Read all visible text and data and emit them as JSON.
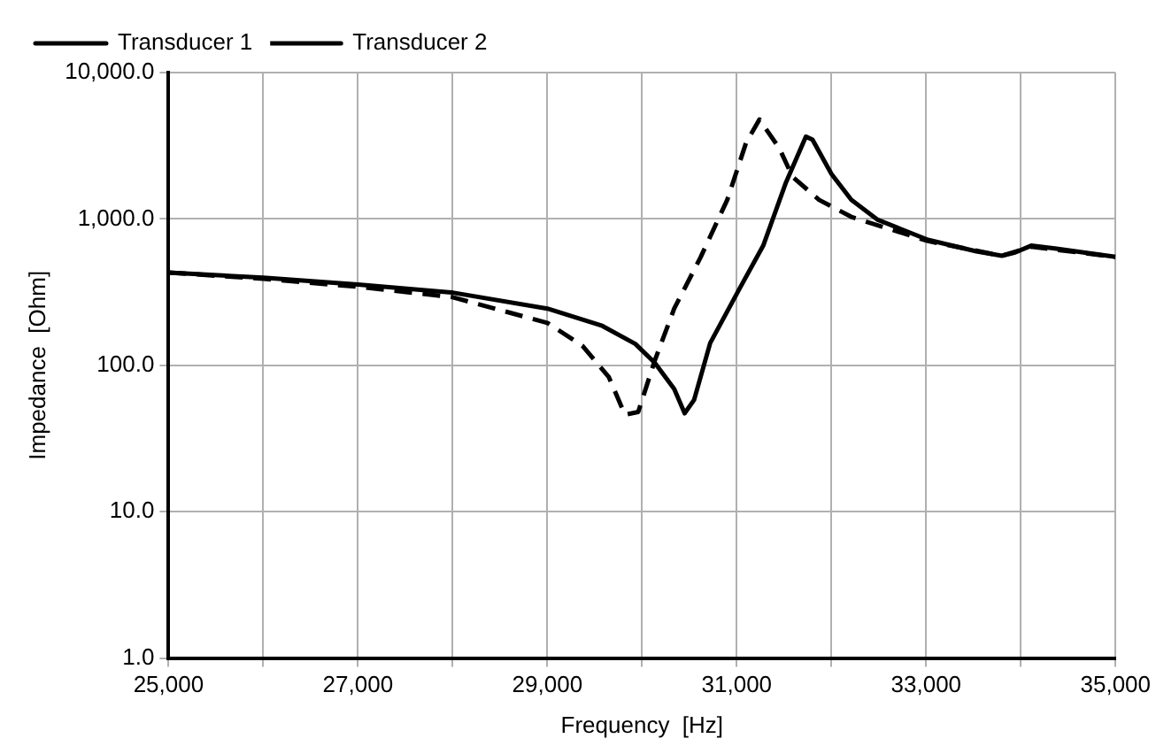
{
  "chart_data": {
    "type": "line",
    "xlabel": "Frequency  [Hz]",
    "ylabel": "Impedance  [Ohm]",
    "xlim": [
      25000,
      35000
    ],
    "xticks": [
      {
        "value": 25000,
        "label": "25,000"
      },
      {
        "value": 26000,
        "label": null
      },
      {
        "value": 27000,
        "label": "27,000"
      },
      {
        "value": 28000,
        "label": null
      },
      {
        "value": 29000,
        "label": "29,000"
      },
      {
        "value": 30000,
        "label": null
      },
      {
        "value": 31000,
        "label": "31,000"
      },
      {
        "value": 32000,
        "label": null
      },
      {
        "value": 33000,
        "label": "33,000"
      },
      {
        "value": 34000,
        "label": null
      },
      {
        "value": 35000,
        "label": "35,000"
      }
    ],
    "ylim": [
      1,
      10000
    ],
    "yticks": [
      {
        "value": 1,
        "label": "1.0"
      },
      {
        "value": 10,
        "label": "10.0"
      },
      {
        "value": 100,
        "label": "100.0"
      },
      {
        "value": 1000,
        "label": "1,000.0"
      },
      {
        "value": 10000,
        "label": "10,000.0"
      }
    ],
    "log": "y",
    "grid": true,
    "legend": "top left",
    "marker": "none",
    "series": [
      {
        "name": "Transducer 1",
        "color": "#000000",
        "line_style": "solid",
        "x": [
          25000,
          26000,
          27000,
          28000,
          29000,
          29580,
          29930,
          30135,
          30340,
          30450,
          30550,
          30720,
          31030,
          31280,
          31520,
          31730,
          31800,
          32000,
          32210,
          32490,
          33020,
          33530,
          33800,
          33940,
          34110,
          34360,
          35000
        ],
        "values": [
          430,
          397,
          356,
          314,
          244,
          186,
          140,
          104,
          69,
          47,
          58,
          142,
          334,
          657,
          1775,
          3650,
          3480,
          2030,
          1350,
          986,
          720,
          601,
          560,
          590,
          657,
          629,
          550
        ]
      },
      {
        "name": "Transducer 2",
        "color": "#000000",
        "line_style": "dashed",
        "x": [
          25000,
          26000,
          27000,
          28000,
          29000,
          29370,
          29650,
          29820,
          29960,
          30135,
          30340,
          30620,
          30900,
          31100,
          31240,
          31450,
          31590,
          31870,
          32210,
          32630,
          33020,
          33800,
          34110,
          35000
        ],
        "values": [
          430,
          390,
          344,
          292,
          195,
          136,
          83,
          46,
          48,
          108,
          244,
          550,
          1350,
          3330,
          4780,
          3040,
          1940,
          1350,
          1033,
          847,
          706,
          560,
          646,
          550
        ]
      }
    ]
  }
}
